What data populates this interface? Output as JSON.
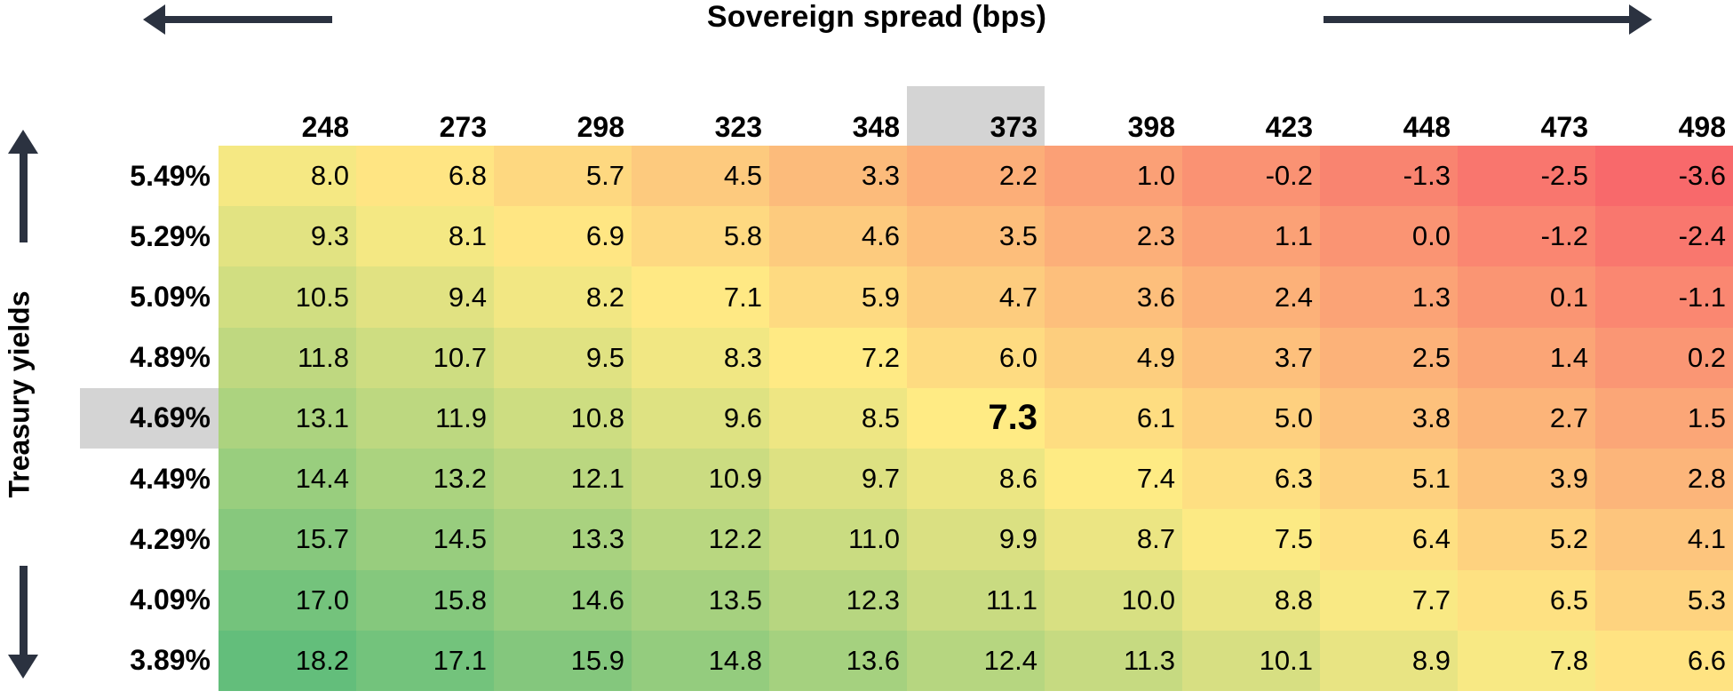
{
  "title": "Sovereign spread (bps)",
  "y_axis_label": "Treasury yields",
  "chart_data": {
    "type": "heatmap",
    "x_label": "Sovereign spread (bps)",
    "y_label": "Treasury yields",
    "columns": [
      "248",
      "273",
      "298",
      "323",
      "348",
      "373",
      "398",
      "423",
      "448",
      "473",
      "498"
    ],
    "rows": [
      "5.49%",
      "5.29%",
      "5.09%",
      "4.89%",
      "4.69%",
      "4.49%",
      "4.29%",
      "4.09%",
      "3.89%"
    ],
    "values": [
      [
        8.0,
        6.8,
        5.7,
        4.5,
        3.3,
        2.2,
        1.0,
        -0.2,
        -1.3,
        -2.5,
        -3.6
      ],
      [
        9.3,
        8.1,
        6.9,
        5.8,
        4.6,
        3.5,
        2.3,
        1.1,
        0.0,
        -1.2,
        -2.4
      ],
      [
        10.5,
        9.4,
        8.2,
        7.1,
        5.9,
        4.7,
        3.6,
        2.4,
        1.3,
        0.1,
        -1.1
      ],
      [
        11.8,
        10.7,
        9.5,
        8.3,
        7.2,
        6.0,
        4.9,
        3.7,
        2.5,
        1.4,
        0.2
      ],
      [
        13.1,
        11.9,
        10.8,
        9.6,
        8.5,
        7.3,
        6.1,
        5.0,
        3.8,
        2.7,
        1.5
      ],
      [
        14.4,
        13.2,
        12.1,
        10.9,
        9.7,
        8.6,
        7.4,
        6.3,
        5.1,
        3.9,
        2.8
      ],
      [
        15.7,
        14.5,
        13.3,
        12.2,
        11.0,
        9.9,
        8.7,
        7.5,
        6.4,
        5.2,
        4.1
      ],
      [
        17.0,
        15.8,
        14.6,
        13.5,
        12.3,
        11.1,
        10.0,
        8.8,
        7.7,
        6.5,
        5.3
      ],
      [
        18.2,
        17.1,
        15.9,
        14.8,
        13.6,
        12.4,
        11.3,
        10.1,
        8.9,
        7.8,
        6.6
      ]
    ],
    "highlighted": {
      "row": "4.69%",
      "column": "373",
      "value": 7.3,
      "row_index": 4,
      "col_index": 5
    },
    "color_scale": {
      "min_value": -3.6,
      "mid_value": 7.3,
      "max_value": 18.2,
      "min_color": "#F8696B",
      "mid_color": "#FFEB84",
      "max_color": "#63BE7B"
    },
    "highlight_color": "#d4d4d4",
    "arrow_color": "#2b3240",
    "legend_position": "none",
    "grid": false
  }
}
